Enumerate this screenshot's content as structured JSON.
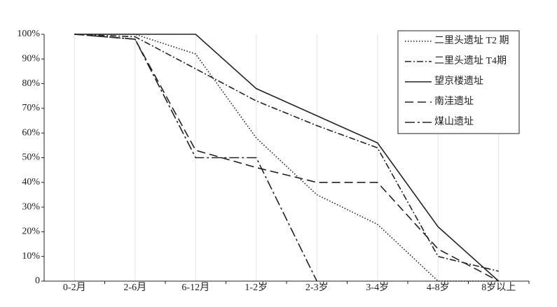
{
  "chart_data": {
    "type": "line",
    "categories": [
      "0-2月",
      "2-6月",
      "6-12月",
      "1-2岁",
      "2-3岁",
      "3-4岁",
      "4-8岁",
      "8岁以上"
    ],
    "series": [
      {
        "name": "二里头遗址 T2 期",
        "color": "#222222",
        "dash": "1.5,2.5",
        "values": [
          100,
          100,
          92,
          58,
          35,
          23,
          0,
          0
        ]
      },
      {
        "name": "二里头遗址 T4期",
        "color": "#222222",
        "dash": "9,3,2,3",
        "values": [
          100,
          99,
          86,
          73,
          63,
          54,
          10,
          4
        ]
      },
      {
        "name": "望京楼遗址",
        "color": "#222222",
        "dash": "none",
        "values": [
          100,
          100,
          100,
          78,
          67,
          56,
          22,
          0
        ]
      },
      {
        "name": "南洼遗址",
        "color": "#222222",
        "dash": "12,6",
        "values": [
          100,
          98,
          53,
          46,
          40,
          40,
          13,
          0
        ]
      },
      {
        "name": "煤山遗址",
        "color": "#222222",
        "dash": "14,4,3,4",
        "values": [
          100,
          98,
          50,
          50,
          0,
          null,
          null,
          null
        ]
      }
    ],
    "ylim": [
      0,
      100
    ],
    "yticks": [
      0,
      {
        "value": 10,
        "label": "10%"
      },
      {
        "value": 20,
        "label": "20%"
      },
      {
        "value": 30,
        "label": "30%"
      },
      {
        "value": 40,
        "label": "40%"
      },
      {
        "value": 50,
        "label": "50%"
      },
      {
        "value": 60,
        "label": "60%"
      },
      {
        "value": 70,
        "label": "70%"
      },
      {
        "value": 80,
        "label": "80%"
      },
      {
        "value": 90,
        "label": "90%"
      },
      {
        "value": 100,
        "label": "100%"
      }
    ],
    "xgrid": true,
    "legend": "top-right"
  }
}
